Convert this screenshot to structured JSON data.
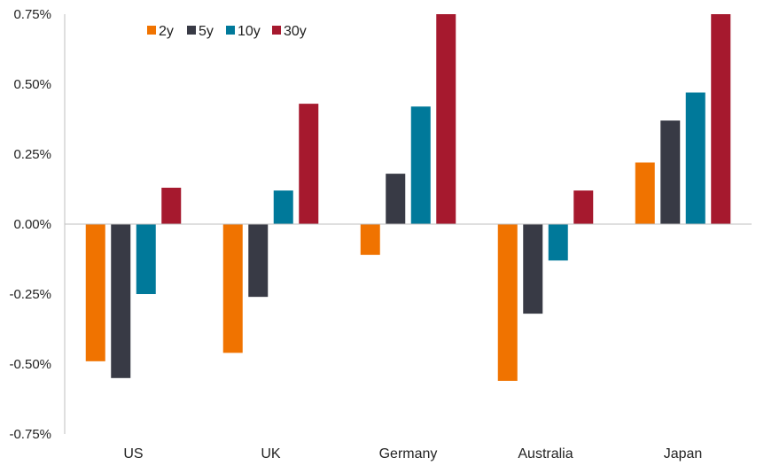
{
  "chart_data": {
    "type": "bar",
    "categories": [
      "US",
      "UK",
      "Germany",
      "Australia",
      "Japan"
    ],
    "series": [
      {
        "name": "2y",
        "color": "#f07300",
        "values": [
          -0.49,
          -0.46,
          -0.11,
          -0.56,
          0.22
        ]
      },
      {
        "name": "5y",
        "color": "#383a45",
        "values": [
          -0.55,
          -0.26,
          0.18,
          -0.32,
          0.37
        ]
      },
      {
        "name": "10y",
        "color": "#00799a",
        "values": [
          -0.25,
          0.12,
          0.42,
          -0.13,
          0.47
        ]
      },
      {
        "name": "30y",
        "color": "#a6192e",
        "values": [
          0.13,
          0.43,
          0.75,
          0.12,
          0.75
        ]
      }
    ],
    "ylim": [
      -0.75,
      0.75
    ],
    "yticks": [
      0.75,
      0.5,
      0.25,
      0.0,
      -0.25,
      -0.5,
      -0.75
    ],
    "ytick_labels": [
      "0.75%",
      "0.50%",
      "0.25%",
      "0.00%",
      "-0.25%",
      "-0.50%",
      "-0.75%"
    ],
    "grid": false,
    "legend_position": "top-left",
    "title": "",
    "xlabel": "",
    "ylabel": ""
  }
}
